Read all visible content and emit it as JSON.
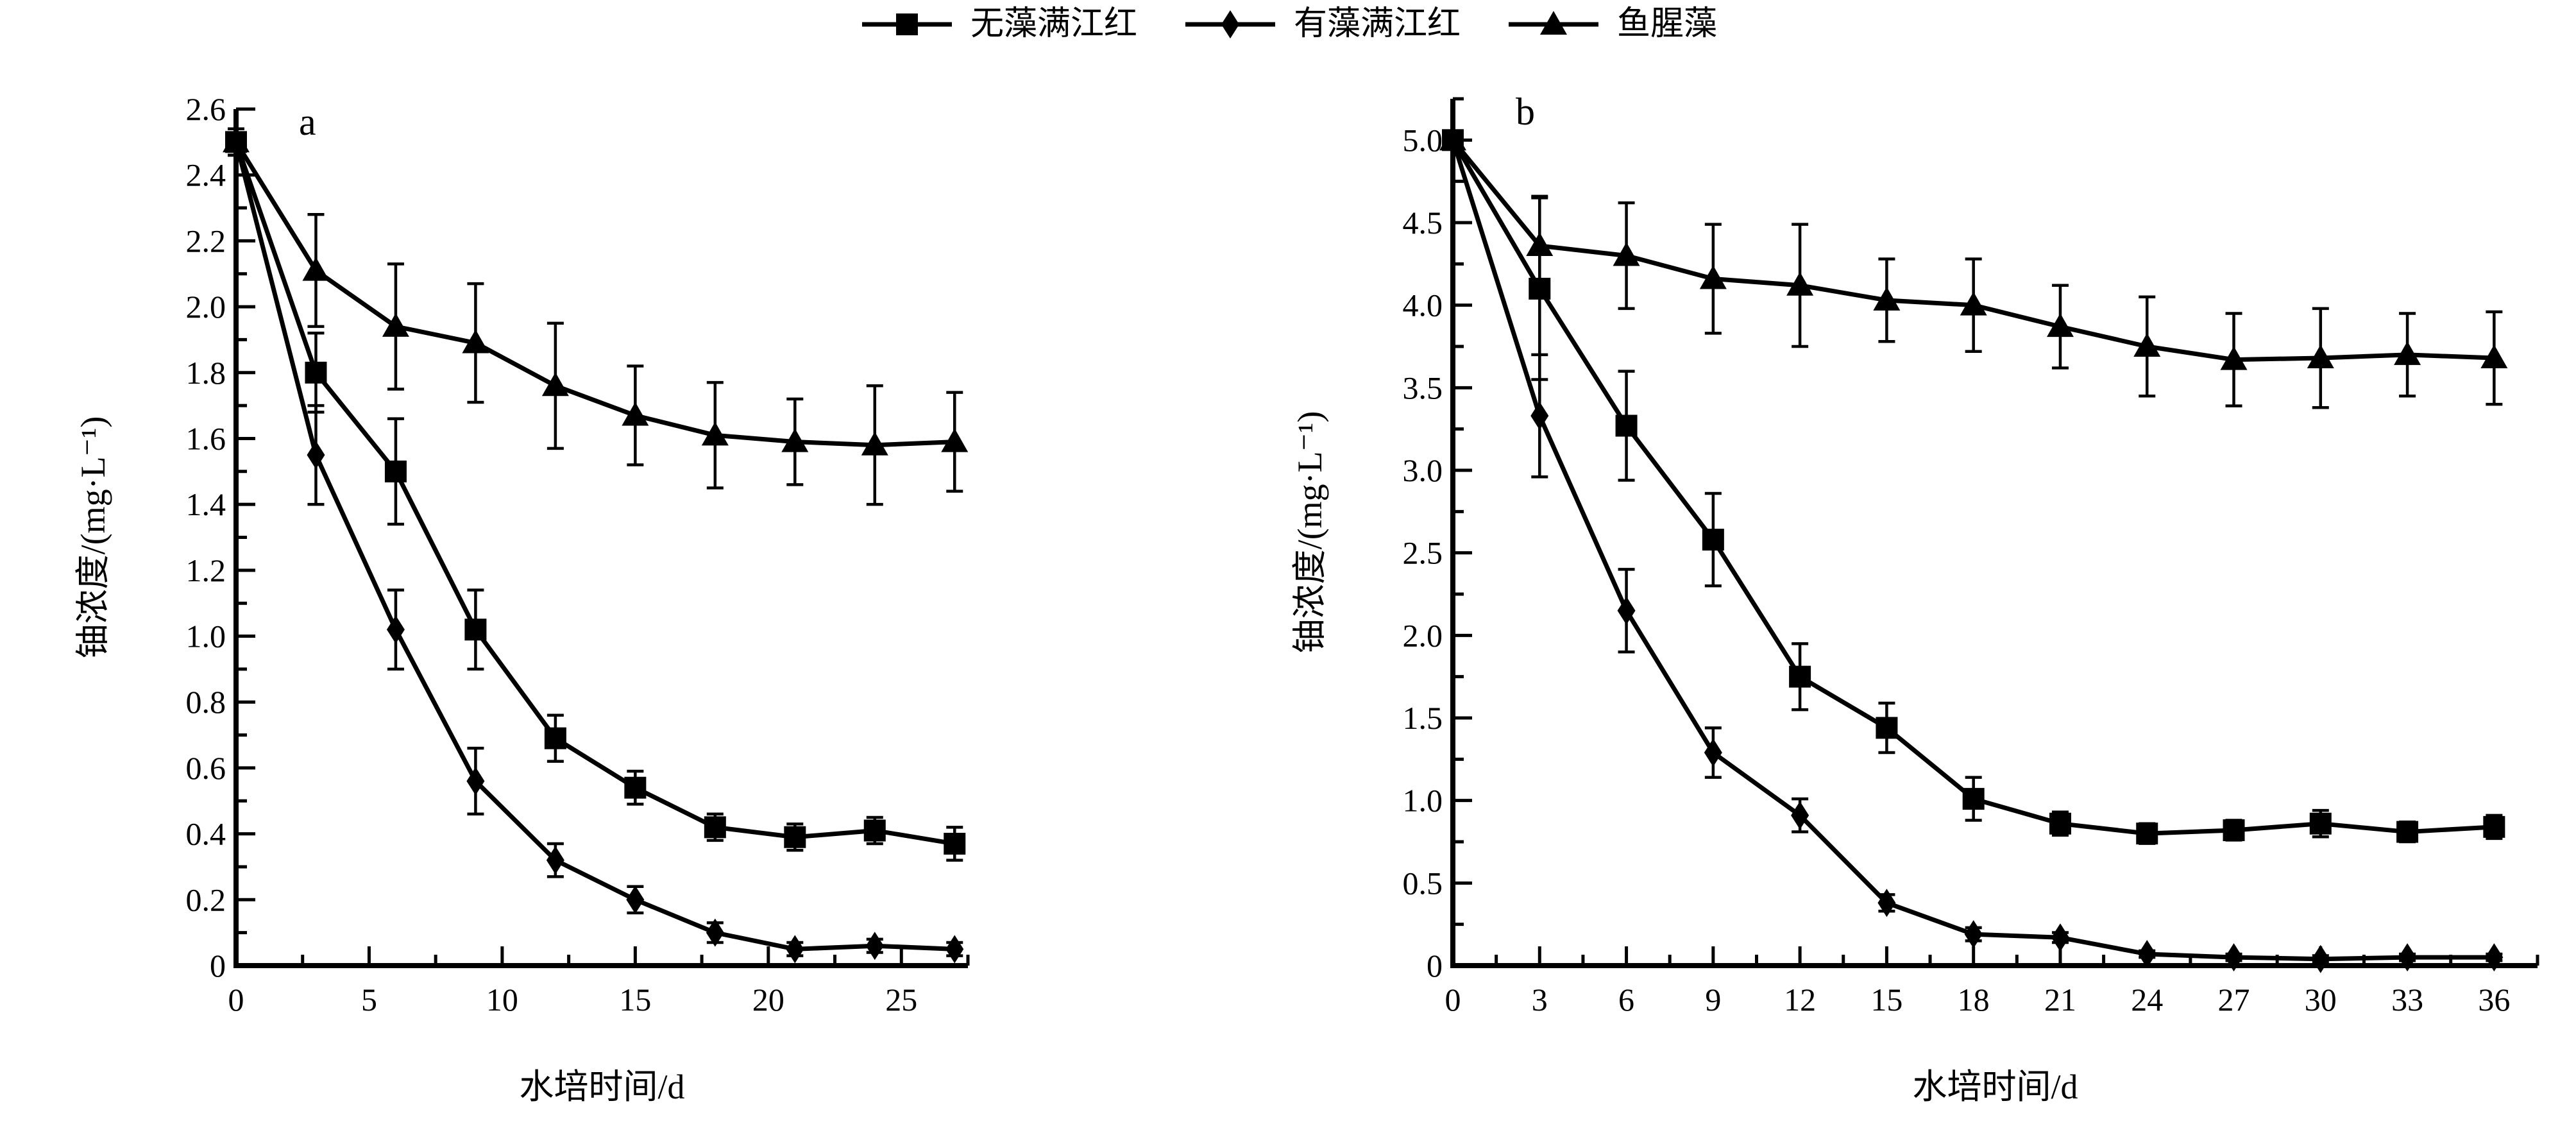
{
  "page": {
    "background_color": "#ffffff",
    "ink_color": "#000000"
  },
  "legend": {
    "items": [
      {
        "label": "无藻满江红",
        "marker": "square"
      },
      {
        "label": "有藻满江红",
        "marker": "diamond"
      },
      {
        "label": "鱼腥藻",
        "marker": "triangle"
      }
    ]
  },
  "chart_data": [
    {
      "type": "line",
      "panel_label": "a",
      "xlabel": "水培时间/d",
      "ylabel": "铀浓度/(mg·L⁻¹)",
      "x": [
        0,
        3,
        6,
        9,
        12,
        15,
        18,
        21,
        24,
        27
      ],
      "xlim": [
        0,
        27.5
      ],
      "ylim": [
        0,
        2.6
      ],
      "x_major_ticks": [
        0,
        5,
        10,
        15,
        20,
        25
      ],
      "x_minor_step": 2.5,
      "y_major_step": 0.2,
      "y_minor_step": 0.1,
      "y_label_max": 2.6,
      "grid": false,
      "legend_position": "top-center-shared",
      "series": [
        {
          "name": "无藻满江红",
          "marker": "square",
          "values": [
            2.5,
            1.8,
            1.5,
            1.02,
            0.69,
            0.54,
            0.42,
            0.39,
            0.41,
            0.37
          ],
          "errors": [
            0.04,
            0.12,
            0.16,
            0.12,
            0.07,
            0.05,
            0.04,
            0.04,
            0.04,
            0.05
          ]
        },
        {
          "name": "有藻满江红",
          "marker": "diamond",
          "values": [
            2.5,
            1.55,
            1.02,
            0.56,
            0.32,
            0.2,
            0.1,
            0.05,
            0.06,
            0.05
          ],
          "errors": [
            0.04,
            0.15,
            0.12,
            0.1,
            0.05,
            0.04,
            0.03,
            0.02,
            0.02,
            0.02
          ]
        },
        {
          "name": "鱼腥藻",
          "marker": "triangle",
          "values": [
            2.5,
            2.11,
            1.94,
            1.89,
            1.76,
            1.67,
            1.61,
            1.59,
            1.58,
            1.59
          ],
          "errors": [
            0.04,
            0.17,
            0.19,
            0.18,
            0.19,
            0.15,
            0.16,
            0.13,
            0.18,
            0.15
          ]
        }
      ]
    },
    {
      "type": "line",
      "panel_label": "b",
      "xlabel": "水培时间/d",
      "ylabel": "铀浓度/(mg·L⁻¹)",
      "x": [
        0,
        3,
        6,
        9,
        12,
        15,
        18,
        21,
        24,
        27,
        30,
        33,
        36
      ],
      "xlim": [
        0,
        37.5
      ],
      "ylim": [
        0,
        5.25
      ],
      "x_major_ticks": [
        0,
        3,
        6,
        9,
        12,
        15,
        18,
        21,
        24,
        27,
        30,
        33,
        36
      ],
      "x_minor_step": 1.5,
      "y_major_step": 0.5,
      "y_minor_step": 0.25,
      "y_label_max": 5.0,
      "grid": false,
      "legend_position": "top-center-shared",
      "series": [
        {
          "name": "无藻满江红",
          "marker": "square",
          "values": [
            5.0,
            4.1,
            3.27,
            2.58,
            1.75,
            1.44,
            1.01,
            0.86,
            0.8,
            0.82,
            0.86,
            0.81,
            0.84
          ],
          "errors": [
            0.04,
            0.55,
            0.33,
            0.28,
            0.2,
            0.15,
            0.13,
            0.07,
            0.06,
            0.06,
            0.08,
            0.06,
            0.07
          ]
        },
        {
          "name": "有藻满江红",
          "marker": "diamond",
          "values": [
            5.0,
            3.33,
            2.15,
            1.29,
            0.91,
            0.38,
            0.19,
            0.17,
            0.07,
            0.05,
            0.04,
            0.05,
            0.05
          ],
          "errors": [
            0.04,
            0.37,
            0.25,
            0.15,
            0.1,
            0.05,
            0.04,
            0.03,
            0.02,
            0.02,
            0.02,
            0.02,
            0.02
          ]
        },
        {
          "name": "鱼腥藻",
          "marker": "triangle",
          "values": [
            5.0,
            4.36,
            4.3,
            4.16,
            4.12,
            4.03,
            4.0,
            3.87,
            3.75,
            3.67,
            3.68,
            3.7,
            3.68
          ],
          "errors": [
            0.04,
            0.3,
            0.32,
            0.33,
            0.37,
            0.25,
            0.28,
            0.25,
            0.3,
            0.28,
            0.3,
            0.25,
            0.28
          ]
        }
      ]
    }
  ]
}
